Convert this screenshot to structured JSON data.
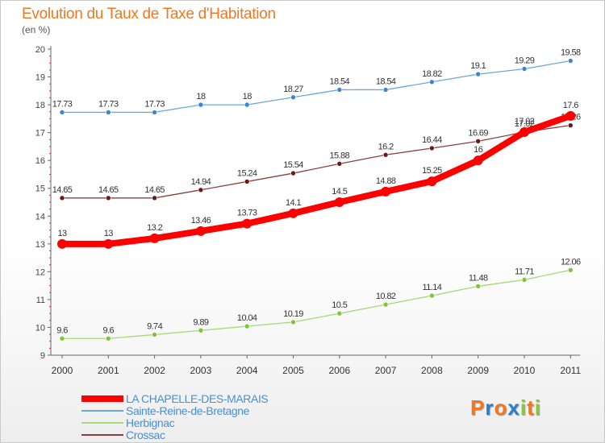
{
  "header": {
    "title": "Evolution du Taux de Taxe d'Habitation",
    "subtitle": "(en %)"
  },
  "logo": {
    "letters": [
      "P",
      "r",
      "o",
      "x",
      "i",
      "t",
      "i"
    ],
    "colors": [
      "#f07820",
      "#2a7ec8",
      "#f07820",
      "#2a7ec8",
      "#8ac832",
      "#f07820",
      "#8ac832"
    ]
  },
  "chart_data": {
    "type": "line",
    "title": "Evolution du Taux de Taxe d'Habitation",
    "subtitle": "(en %)",
    "xlabel": "",
    "ylabel": "",
    "ylim": [
      9,
      20
    ],
    "yticks": [
      9,
      10,
      11,
      12,
      13,
      14,
      15,
      16,
      17,
      18,
      19,
      20
    ],
    "grid": "none",
    "legend_position": "bottom-left",
    "x": [
      "2000",
      "2001",
      "2002",
      "2003",
      "2004",
      "2005",
      "2006",
      "2007",
      "2008",
      "2009",
      "2010",
      "2011"
    ],
    "series": [
      {
        "name": "LA CHAPELLE-DES-MARAIS",
        "color": "#ff0000",
        "emphasis": true,
        "values": [
          13,
          13,
          13.2,
          13.46,
          13.73,
          14.1,
          14.5,
          14.88,
          15.25,
          16,
          17.02,
          17.6
        ],
        "labels": [
          "13",
          "13",
          "13.2",
          "13.46",
          "13.73",
          "14.1",
          "14.5",
          "14.88",
          "15.25",
          "16",
          "17.02",
          "17.6"
        ]
      },
      {
        "name": "Sainte-Reine-de-Bretagne",
        "color": "#6aa8d8",
        "marker": "#3a86d0",
        "values": [
          17.73,
          17.73,
          17.73,
          18,
          18,
          18.27,
          18.54,
          18.54,
          18.82,
          19.1,
          19.29,
          19.58
        ],
        "labels": [
          "17.73",
          "17.73",
          "17.73",
          "18",
          "18",
          "18.27",
          "18.54",
          "18.54",
          "18.82",
          "19.1",
          "19.29",
          "19.58"
        ]
      },
      {
        "name": "Herbignac",
        "color": "#a8d878",
        "marker": "#7cc832",
        "values": [
          9.6,
          9.6,
          9.74,
          9.89,
          10.04,
          10.19,
          10.5,
          10.82,
          11.14,
          11.48,
          11.71,
          12.06
        ],
        "labels": [
          "9.6",
          "9.6",
          "9.74",
          "9.89",
          "10.04",
          "10.19",
          "10.5",
          "10.82",
          "11.14",
          "11.48",
          "11.71",
          "12.06"
        ]
      },
      {
        "name": "Crossac",
        "color": "#8a4040",
        "marker": "#6a1818",
        "values": [
          14.65,
          14.65,
          14.65,
          14.94,
          15.24,
          15.54,
          15.88,
          16.2,
          16.44,
          16.69,
          17.02,
          17.26
        ],
        "labels": [
          "14.65",
          "14.65",
          "14.65",
          "14.94",
          "15.24",
          "15.54",
          "15.88",
          "16.2",
          "16.44",
          "16.69",
          "17.02",
          "17.26"
        ]
      }
    ]
  }
}
